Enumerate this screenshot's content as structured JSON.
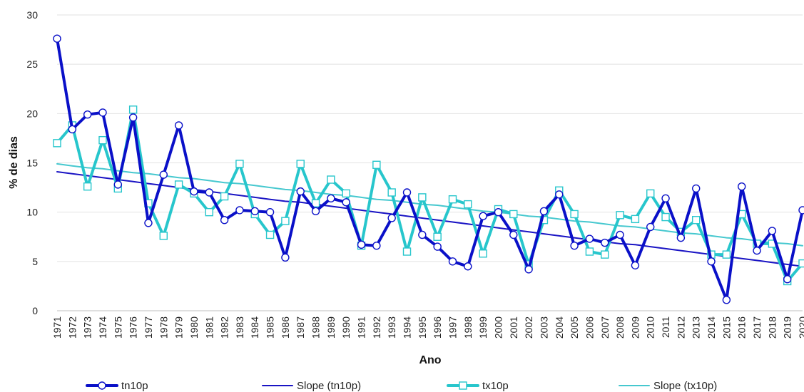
{
  "chart_data": {
    "type": "line",
    "title": "",
    "xlabel": "Ano",
    "ylabel": "% de dias",
    "ylim": [
      0,
      30
    ],
    "yticks": [
      0,
      5,
      10,
      15,
      20,
      25,
      30
    ],
    "grid": {
      "horizontal": true,
      "vertical": false
    },
    "legend_position": "bottom",
    "x": [
      "1971",
      "1972",
      "1973",
      "1974",
      "1975",
      "1976",
      "1977",
      "1978",
      "1979",
      "1980",
      "1981",
      "1982",
      "1983",
      "1984",
      "1985",
      "1986",
      "1987",
      "1988",
      "1989",
      "1990",
      "1991",
      "1992",
      "1993",
      "1994",
      "1995",
      "1996",
      "1997",
      "1998",
      "1999",
      "2000",
      "2001",
      "2002",
      "2003",
      "2004",
      "2005",
      "2006",
      "2007",
      "2008",
      "2009",
      "2010",
      "2011",
      "2012",
      "2013",
      "2014",
      "2015",
      "2016",
      "2017",
      "2018",
      "2019",
      "2020"
    ],
    "series": [
      {
        "name": "tn10p",
        "kind": "data",
        "color": "#0a10c8",
        "marker": "circle",
        "values": [
          27.6,
          18.4,
          19.9,
          20.1,
          12.8,
          19.6,
          8.9,
          13.8,
          18.8,
          12.1,
          12.0,
          9.2,
          10.2,
          10.1,
          10.0,
          5.4,
          12.1,
          10.1,
          11.4,
          11.0,
          6.7,
          6.6,
          9.4,
          12.0,
          7.7,
          6.5,
          5.0,
          4.5,
          9.6,
          10.0,
          7.7,
          4.2,
          10.1,
          11.8,
          6.6,
          7.3,
          6.9,
          7.7,
          4.6,
          8.5,
          11.4,
          7.4,
          12.4,
          5.0,
          1.1,
          12.6,
          6.1,
          8.1,
          3.2,
          10.2
        ]
      },
      {
        "name": "Slope (tn10p)",
        "kind": "trend",
        "color": "#1a14c4",
        "values": [
          14.1,
          13.9,
          13.7,
          13.5,
          13.3,
          13.1,
          12.9,
          12.7,
          12.5,
          12.3,
          12.1,
          11.9,
          11.7,
          11.5,
          11.3,
          11.1,
          11.0,
          10.8,
          10.6,
          10.4,
          10.2,
          10.0,
          9.8,
          9.6,
          9.4,
          9.2,
          9.0,
          8.8,
          8.6,
          8.4,
          8.2,
          8.0,
          7.8,
          7.6,
          7.4,
          7.2,
          7.0,
          6.8,
          6.7,
          6.5,
          6.3,
          6.1,
          5.9,
          5.7,
          5.5,
          5.3,
          5.1,
          4.9,
          4.7,
          4.5
        ]
      },
      {
        "name": "tx10p",
        "kind": "data",
        "color": "#27c6cc",
        "marker": "square",
        "values": [
          17.0,
          18.8,
          12.6,
          17.3,
          12.4,
          20.4,
          10.9,
          7.6,
          12.8,
          11.9,
          10.0,
          11.6,
          14.9,
          9.8,
          7.7,
          9.1,
          14.9,
          10.9,
          13.3,
          11.9,
          6.6,
          14.8,
          12.0,
          6.0,
          11.5,
          7.5,
          11.3,
          10.8,
          5.8,
          10.3,
          9.8,
          4.7,
          9.2,
          12.2,
          9.8,
          6.0,
          5.7,
          9.7,
          9.3,
          11.9,
          9.5,
          8.0,
          9.2,
          5.7,
          5.7,
          9.8,
          6.8,
          6.8,
          3.0,
          4.8
        ]
      },
      {
        "name": "Slope (tx10p)",
        "kind": "trend",
        "color": "#46c8cf",
        "values": [
          14.9,
          14.7,
          14.5,
          14.4,
          14.2,
          14.0,
          13.9,
          13.7,
          13.5,
          13.4,
          13.2,
          13.0,
          12.9,
          12.7,
          12.5,
          12.3,
          12.2,
          12.0,
          11.8,
          11.7,
          11.5,
          11.3,
          11.2,
          11.0,
          10.8,
          10.7,
          10.5,
          10.3,
          10.1,
          10.0,
          9.8,
          9.6,
          9.5,
          9.3,
          9.1,
          9.0,
          8.8,
          8.6,
          8.5,
          8.3,
          8.1,
          7.9,
          7.8,
          7.6,
          7.4,
          7.3,
          7.1,
          6.9,
          6.8,
          6.6
        ]
      }
    ]
  }
}
